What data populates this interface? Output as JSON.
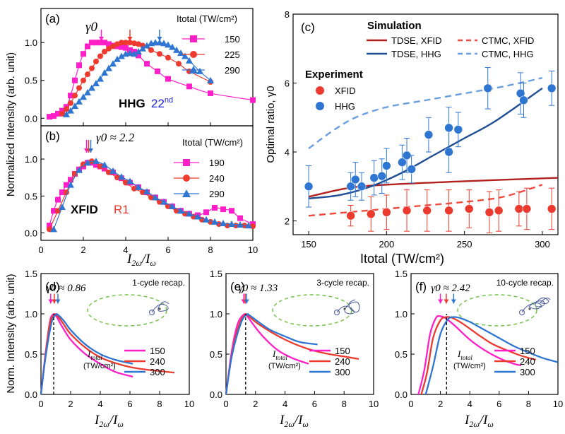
{
  "colors": {
    "magenta": "#ff1fc8",
    "red": "#ec3a2f",
    "blue": "#2f76d2",
    "dark_red": "#b3201d",
    "navy": "#1f4e95",
    "dashed_red": "#ef4a3f",
    "dashed_blue": "#6a9edf",
    "ellipse": "#6cbf3f"
  },
  "shared": {
    "ylabel_top": "Normalized Intensity (arb. unit)",
    "ylabel_bottom": "Norm. Intensity (arb. unit)",
    "xlabel_ratio": "I2ω/Iω",
    "itotal_label": "Itotal",
    "tw_unit_paren": "(TW/cm²)"
  },
  "chart_data": [
    {
      "id": "a",
      "panel_label": "(a)",
      "type": "line",
      "xlim": [
        0,
        10
      ],
      "ylim": [
        -0.1,
        1.45
      ],
      "yticks": [
        "0.0",
        "0.5",
        "1.0"
      ],
      "gamma_label": "γ0",
      "legend_title": "Itotal (TW/cm²)",
      "text_main": "HHG",
      "text_order": "22nd",
      "series": [
        {
          "name": "150",
          "marker": "square",
          "color": "magenta",
          "x": [
            0.4,
            0.6,
            0.8,
            1.0,
            1.2,
            1.4,
            1.6,
            1.8,
            2.0,
            2.2,
            2.4,
            2.6,
            2.8,
            3.0,
            3.2,
            3.4,
            3.6,
            3.8,
            4.0,
            4.2,
            4.4,
            4.6,
            5.0,
            5.5,
            6.0,
            7.0,
            8.0,
            10.0
          ],
          "y": [
            0.02,
            0.03,
            0.06,
            0.1,
            0.15,
            0.3,
            0.5,
            0.7,
            0.85,
            0.95,
            1.0,
            1.0,
            1.0,
            1.0,
            0.98,
            0.96,
            0.95,
            0.94,
            0.93,
            0.9,
            0.88,
            0.83,
            0.72,
            0.62,
            0.52,
            0.42,
            0.33,
            0.24
          ]
        },
        {
          "name": "225",
          "marker": "circle",
          "color": "red",
          "x": [
            1.0,
            1.2,
            1.4,
            1.6,
            1.8,
            2.0,
            2.2,
            2.4,
            2.6,
            2.8,
            3.0,
            3.2,
            3.4,
            3.6,
            3.8,
            4.0,
            4.2,
            4.4,
            4.6,
            4.8,
            5.2,
            5.6,
            6.0,
            6.5,
            7.0,
            8.0
          ],
          "y": [
            0.06,
            0.12,
            0.2,
            0.3,
            0.4,
            0.5,
            0.58,
            0.66,
            0.75,
            0.82,
            0.88,
            0.92,
            0.95,
            0.98,
            1.0,
            1.0,
            1.0,
            0.99,
            0.98,
            0.96,
            0.9,
            0.85,
            0.8,
            0.72,
            0.62,
            0.48
          ]
        },
        {
          "name": "290",
          "marker": "triangle",
          "color": "blue",
          "x": [
            1.2,
            1.4,
            1.6,
            1.8,
            2.0,
            2.2,
            2.4,
            2.6,
            2.8,
            3.0,
            3.2,
            3.4,
            3.6,
            3.8,
            4.0,
            4.2,
            4.4,
            4.6,
            4.8,
            5.0,
            5.2,
            5.4,
            5.6,
            5.8,
            6.0,
            6.2,
            6.4,
            6.6,
            6.8,
            7.0,
            7.5,
            8.0
          ],
          "y": [
            0.05,
            0.1,
            0.16,
            0.22,
            0.28,
            0.34,
            0.4,
            0.46,
            0.52,
            0.6,
            0.66,
            0.72,
            0.78,
            0.82,
            0.85,
            0.86,
            0.85,
            0.88,
            0.92,
            0.96,
            0.99,
            1.0,
            1.0,
            0.99,
            0.97,
            0.94,
            0.9,
            0.86,
            0.82,
            0.76,
            0.62,
            0.5
          ]
        }
      ],
      "arrows": [
        {
          "x": 2.85,
          "color": "magenta"
        },
        {
          "x": 4.2,
          "color": "red"
        },
        {
          "x": 5.6,
          "color": "blue"
        }
      ]
    },
    {
      "id": "b",
      "panel_label": "(b)",
      "type": "line",
      "xlim": [
        0,
        10
      ],
      "ylim": [
        -0.1,
        1.45
      ],
      "yticks": [
        "0.0",
        "0.5",
        "1.0"
      ],
      "xticks": [
        "0",
        "2",
        "4",
        "6",
        "8",
        "10"
      ],
      "gamma_label": "γ0 ≈ 2.2",
      "legend_title": "Itotal (TW/cm²)",
      "text_main": "XFID",
      "text_order": "R1",
      "series": [
        {
          "name": "190",
          "marker": "square",
          "color": "magenta",
          "x": [
            0.4,
            0.6,
            0.8,
            1.0,
            1.2,
            1.4,
            1.6,
            1.8,
            2.0,
            2.2,
            2.4,
            2.6,
            2.8,
            3.0,
            3.4,
            3.8,
            4.2,
            4.6,
            5.0,
            5.4,
            5.8,
            6.2,
            6.6,
            7.0,
            7.4,
            7.8,
            8.2,
            8.6,
            9.0,
            9.4,
            10.0
          ],
          "y": [
            0.1,
            0.3,
            0.45,
            0.55,
            0.65,
            0.72,
            0.8,
            0.86,
            0.9,
            0.95,
            0.95,
            0.92,
            0.9,
            0.87,
            0.82,
            0.74,
            0.68,
            0.62,
            0.55,
            0.48,
            0.42,
            0.36,
            0.3,
            0.26,
            0.24,
            0.28,
            0.34,
            0.32,
            0.3,
            0.2,
            0.12
          ]
        },
        {
          "name": "240",
          "marker": "circle",
          "color": "red",
          "x": [
            0.4,
            0.8,
            1.2,
            1.6,
            2.0,
            2.4,
            2.8,
            3.2,
            3.6,
            4.0,
            4.4,
            4.8,
            5.2,
            5.6,
            6.0,
            6.4,
            6.8,
            7.2,
            7.6,
            8.0,
            8.4,
            8.8,
            9.2,
            9.6,
            10.0
          ],
          "y": [
            0.05,
            0.3,
            0.55,
            0.8,
            0.93,
            0.97,
            0.9,
            0.82,
            0.75,
            0.68,
            0.6,
            0.55,
            0.48,
            0.42,
            0.36,
            0.3,
            0.26,
            0.22,
            0.18,
            0.15,
            0.12,
            0.1,
            0.1,
            0.1,
            0.09
          ]
        },
        {
          "name": "290",
          "marker": "triangle",
          "color": "blue",
          "x": [
            0.6,
            1.0,
            1.4,
            1.8,
            2.2,
            2.6,
            3.0,
            3.4,
            3.8,
            4.2,
            4.6,
            5.0,
            5.4,
            5.8,
            6.2,
            6.6,
            7.0,
            7.4,
            7.8,
            8.2,
            8.6,
            9.0,
            9.4,
            9.8
          ],
          "y": [
            0.05,
            0.35,
            0.65,
            0.85,
            0.95,
            0.97,
            0.92,
            0.84,
            0.76,
            0.7,
            0.62,
            0.56,
            0.48,
            0.42,
            0.36,
            0.3,
            0.26,
            0.22,
            0.18,
            0.15,
            0.13,
            0.12,
            0.11,
            0.1
          ]
        }
      ],
      "arrows": [
        {
          "x": 2.15,
          "color": "magenta"
        },
        {
          "x": 2.25,
          "color": "red"
        },
        {
          "x": 2.35,
          "color": "blue"
        }
      ]
    },
    {
      "id": "c",
      "panel_label": "(c)",
      "type": "scatter",
      "xlim": [
        140,
        310
      ],
      "ylim": [
        1.6,
        8
      ],
      "xticks": [
        "150",
        "200",
        "250",
        "300"
      ],
      "yticks": [
        "2",
        "4",
        "6",
        "8"
      ],
      "ylabel": "Optimal ratio, γ0",
      "xlabel": "Itotal (TW/cm²)",
      "legend": {
        "simulation_title": "Simulation",
        "experiment_title": "Experiment",
        "tdse_xfid": "TDSE, XFID",
        "tdse_hhg": "TDSE, HHG",
        "ctmc_xfid": "CTMC, XFID",
        "ctmc_hhg": "CTMC, HHG",
        "exp_xfid": "XFID",
        "exp_hhg": "HHG"
      },
      "tdse_xfid": {
        "x": [
          150,
          175,
          200,
          250,
          310
        ],
        "y": [
          2.7,
          2.95,
          3.05,
          3.15,
          3.25
        ]
      },
      "tdse_hhg": {
        "x": [
          150,
          170,
          190,
          210,
          230,
          250,
          270,
          300
        ],
        "y": [
          2.65,
          2.75,
          3.0,
          3.4,
          3.9,
          4.4,
          4.9,
          5.85
        ]
      },
      "ctmc_xfid": {
        "x": [
          150,
          175,
          200,
          225,
          250,
          275,
          300
        ],
        "y": [
          2.15,
          2.25,
          2.35,
          2.45,
          2.55,
          2.7,
          3.05
        ]
      },
      "ctmc_hhg": {
        "x": [
          150,
          165,
          180,
          200,
          225,
          250,
          275,
          300
        ],
        "y": [
          4.1,
          4.6,
          5.0,
          5.3,
          5.5,
          5.7,
          5.9,
          6.15
        ]
      },
      "xfid_points": [
        {
          "x": 177,
          "y": 2.15,
          "err": 0.3
        },
        {
          "x": 190,
          "y": 2.2,
          "err": 0.5
        },
        {
          "x": 200,
          "y": 2.25,
          "err": 0.5
        },
        {
          "x": 213,
          "y": 2.3,
          "err": 0.6
        },
        {
          "x": 226,
          "y": 2.3,
          "err": 0.6
        },
        {
          "x": 240,
          "y": 2.3,
          "err": 0.6
        },
        {
          "x": 253,
          "y": 2.35,
          "err": 0.55
        },
        {
          "x": 266,
          "y": 2.25,
          "err": 0.6
        },
        {
          "x": 272,
          "y": 2.3,
          "err": 0.6
        },
        {
          "x": 285,
          "y": 2.35,
          "err": 0.5
        },
        {
          "x": 290,
          "y": 2.35,
          "err": 0.6
        },
        {
          "x": 306,
          "y": 2.35,
          "err": 0.6
        }
      ],
      "hhg_points": [
        {
          "x": 150,
          "y": 3.0,
          "err": 0.6
        },
        {
          "x": 177,
          "y": 3.0,
          "err": 0.4
        },
        {
          "x": 180,
          "y": 3.2,
          "err": 0.5
        },
        {
          "x": 184,
          "y": 3.0,
          "err": 0.4
        },
        {
          "x": 192,
          "y": 3.25,
          "err": 0.5
        },
        {
          "x": 197,
          "y": 3.3,
          "err": 0.5
        },
        {
          "x": 200,
          "y": 3.6,
          "err": 0.5
        },
        {
          "x": 210,
          "y": 3.7,
          "err": 0.5
        },
        {
          "x": 213,
          "y": 3.9,
          "err": 0.5
        },
        {
          "x": 216,
          "y": 3.5,
          "err": 0.4
        },
        {
          "x": 227,
          "y": 4.5,
          "err": 0.5
        },
        {
          "x": 240,
          "y": 4.0,
          "err": 0.6
        },
        {
          "x": 240,
          "y": 4.7,
          "err": 0.6
        },
        {
          "x": 246,
          "y": 4.65,
          "err": 0.5
        },
        {
          "x": 265,
          "y": 5.85,
          "err": 0.6
        },
        {
          "x": 286,
          "y": 5.7,
          "err": 0.6
        },
        {
          "x": 288,
          "y": 5.5,
          "err": 0.5
        },
        {
          "x": 306,
          "y": 5.85,
          "err": 0.5
        }
      ]
    },
    {
      "id": "d",
      "panel_label": "(d)",
      "type": "line",
      "xlim": [
        0,
        10
      ],
      "ylim": [
        0,
        1.5
      ],
      "xticks": [
        "0",
        "2",
        "4",
        "6",
        "8",
        "10"
      ],
      "yticks": [
        "0.0",
        "0.5",
        "1.0",
        "1.5"
      ],
      "recap": "1-cycle recap.",
      "gamma_label": "γ0 ≈ 0.86",
      "gamma": 0.86,
      "series": [
        {
          "name": "150",
          "color": "magenta",
          "x": [
            0,
            0.3,
            0.6,
            0.8,
            1.0,
            1.4,
            2.0,
            3.0,
            4.0,
            5.0,
            6.2
          ],
          "y": [
            0,
            0.5,
            0.9,
            0.99,
            0.98,
            0.85,
            0.68,
            0.5,
            0.38,
            0.28,
            0.22
          ]
        },
        {
          "name": "240",
          "color": "red",
          "x": [
            0,
            0.3,
            0.6,
            0.9,
            1.1,
            1.5,
            2.0,
            3.0,
            4.0,
            5.0,
            6.0,
            7.0,
            8.0,
            9.0
          ],
          "y": [
            0,
            0.48,
            0.88,
            0.99,
            0.98,
            0.88,
            0.75,
            0.58,
            0.46,
            0.39,
            0.34,
            0.31,
            0.29,
            0.27
          ]
        },
        {
          "name": "300",
          "color": "blue",
          "x": [
            0,
            0.3,
            0.7,
            1.0,
            1.2,
            1.6,
            2.0,
            3.0,
            4.0,
            5.0,
            6.2
          ],
          "y": [
            0,
            0.45,
            0.88,
            0.99,
            0.98,
            0.9,
            0.8,
            0.62,
            0.5,
            0.43,
            0.38
          ]
        }
      ]
    },
    {
      "id": "e",
      "panel_label": "(e)",
      "type": "line",
      "xlim": [
        0,
        10
      ],
      "ylim": [
        0,
        1.5
      ],
      "xticks": [
        "0",
        "2",
        "4",
        "6",
        "8",
        "10"
      ],
      "yticks": [
        "0.0",
        "0.5",
        "1.0",
        "1.5"
      ],
      "recap": "3-cycle recap.",
      "gamma_label": "γ0 ≈ 1.33",
      "gamma": 1.33,
      "series": [
        {
          "name": "150",
          "color": "magenta",
          "x": [
            0,
            0.4,
            0.8,
            1.2,
            1.4,
            1.8,
            2.5,
            3.5,
            4.5,
            5.6
          ],
          "y": [
            0,
            0.55,
            0.88,
            0.99,
            0.98,
            0.88,
            0.72,
            0.55,
            0.45,
            0.38
          ]
        },
        {
          "name": "240",
          "color": "red",
          "x": [
            0,
            0.4,
            0.9,
            1.3,
            1.5,
            2.0,
            3.0,
            4.0,
            5.0,
            6.0,
            7.0,
            8.0,
            9.0
          ],
          "y": [
            0,
            0.5,
            0.87,
            0.99,
            0.98,
            0.9,
            0.78,
            0.68,
            0.6,
            0.54,
            0.5,
            0.47,
            0.44
          ]
        },
        {
          "name": "300",
          "color": "blue",
          "x": [
            0,
            0.4,
            1.0,
            1.4,
            1.6,
            2.2,
            3.0,
            4.0,
            5.0,
            6.2
          ],
          "y": [
            0,
            0.48,
            0.88,
            0.99,
            0.98,
            0.9,
            0.8,
            0.72,
            0.65,
            0.62
          ]
        }
      ]
    },
    {
      "id": "f",
      "panel_label": "(f)",
      "type": "line",
      "xlim": [
        0,
        10
      ],
      "ylim": [
        0,
        1.5
      ],
      "xticks": [
        "0",
        "2",
        "4",
        "6",
        "8",
        "10"
      ],
      "yticks": [
        "0.0",
        "0.5",
        "1.0",
        "1.5"
      ],
      "recap": "10-cycle recap.",
      "gamma_label": "γ0 ≈ 2.42",
      "gamma": 2.42,
      "series": [
        {
          "name": "150",
          "color": "magenta",
          "x": [
            0.5,
            0.9,
            1.3,
            1.7,
            2.0,
            2.4,
            3.0,
            4.0,
            5.0,
            6.0,
            7.0,
            7.5
          ],
          "y": [
            0,
            0.3,
            0.75,
            0.95,
            0.97,
            0.94,
            0.85,
            0.68,
            0.55,
            0.45,
            0.38,
            0.36
          ]
        },
        {
          "name": "240",
          "color": "red",
          "x": [
            0.7,
            1.1,
            1.5,
            2.0,
            2.4,
            2.8,
            3.5,
            4.5,
            5.5,
            6.5,
            7.5,
            8.5
          ],
          "y": [
            0,
            0.28,
            0.7,
            0.92,
            0.96,
            0.95,
            0.88,
            0.75,
            0.63,
            0.55,
            0.48,
            0.43
          ]
        },
        {
          "name": "300",
          "color": "blue",
          "x": [
            1.0,
            1.5,
            2.0,
            2.5,
            2.9,
            3.3,
            4.0,
            5.0,
            6.0,
            7.0,
            8.0,
            9.0,
            10.0
          ],
          "y": [
            0,
            0.35,
            0.75,
            0.93,
            0.96,
            0.95,
            0.9,
            0.8,
            0.7,
            0.6,
            0.52,
            0.45,
            0.4
          ]
        }
      ]
    }
  ]
}
